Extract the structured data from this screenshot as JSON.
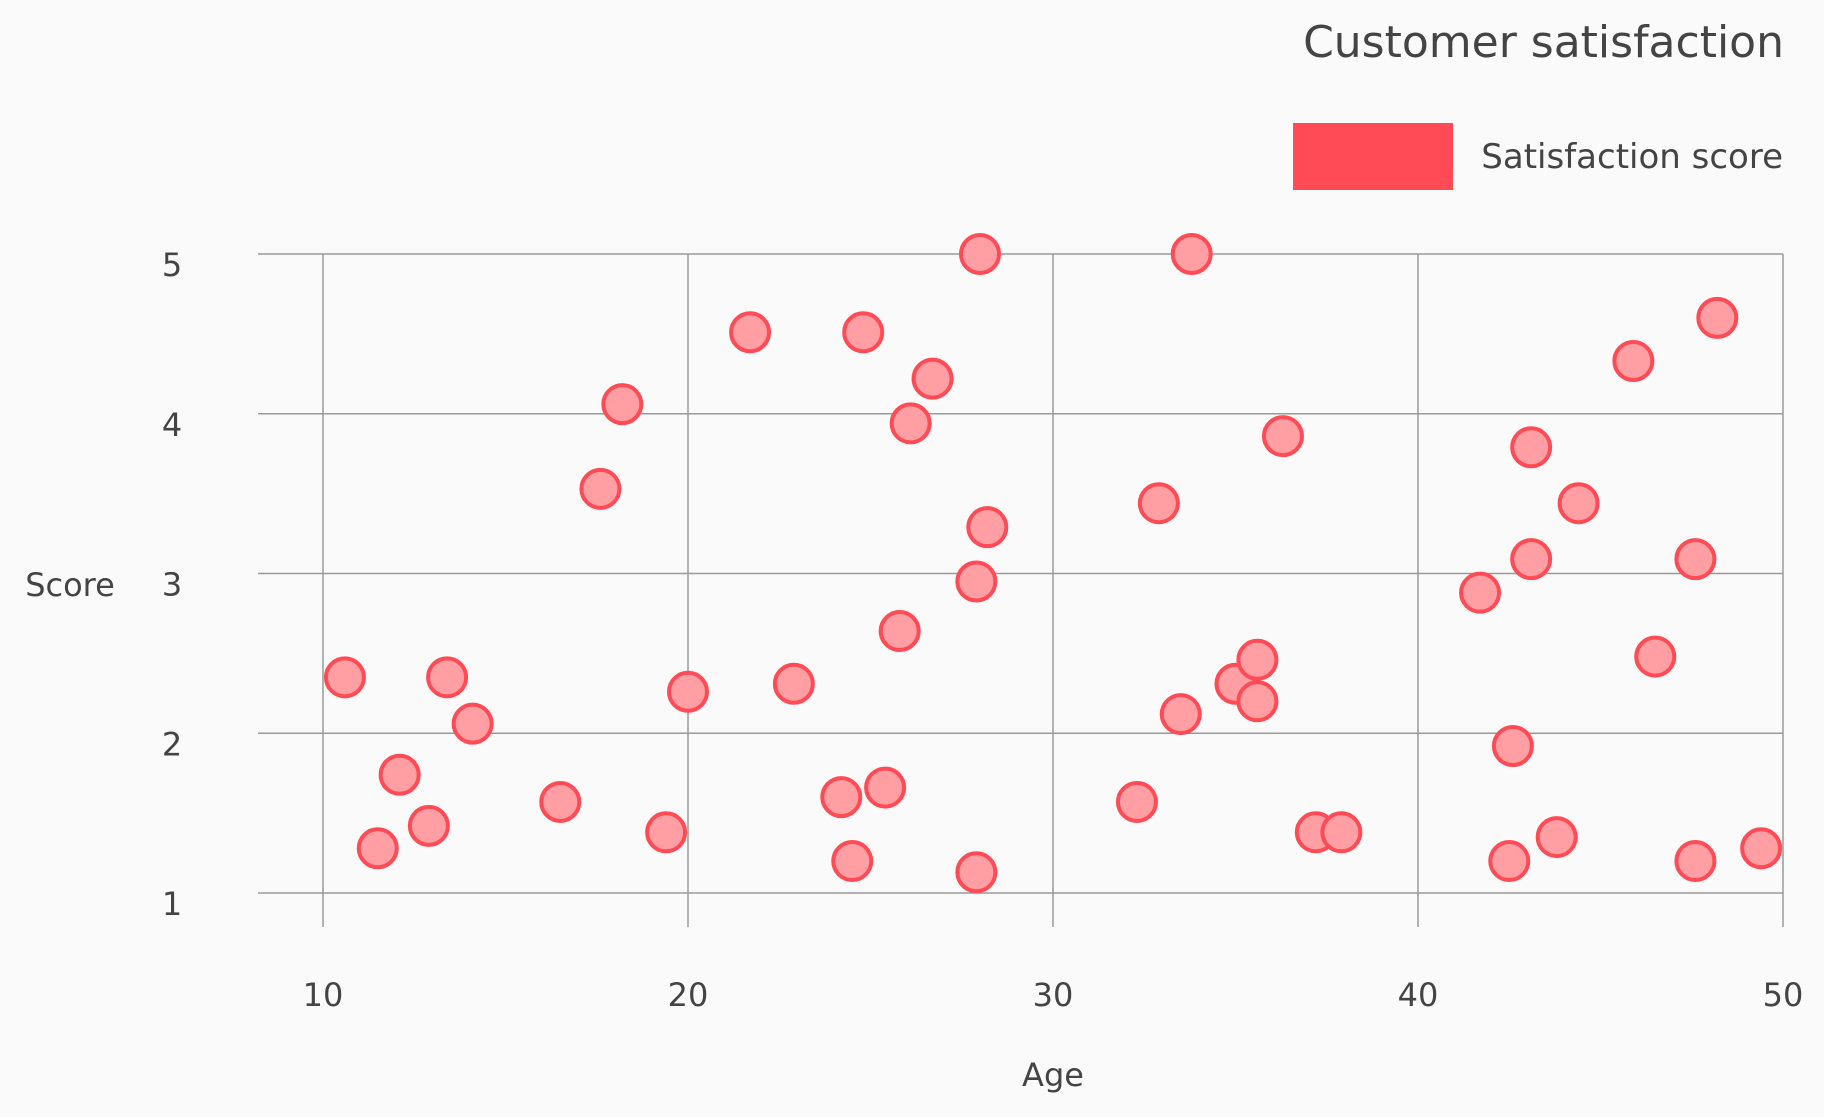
{
  "chart_data": {
    "type": "scatter",
    "title": "Customer satisfaction",
    "xlabel": "Age",
    "ylabel": "Score",
    "xlim": [
      10,
      50
    ],
    "ylim": [
      1,
      5
    ],
    "xticks": [
      "10",
      "20",
      "30",
      "40",
      "50"
    ],
    "yticks": [
      "1",
      "2",
      "3",
      "4",
      "5"
    ],
    "grid": true,
    "legend_position": "top-right",
    "colors": {
      "fill": "#ff9ea3",
      "stroke": "#ff4b55",
      "legend": "#ff4b55"
    },
    "series": [
      {
        "name": "Satisfaction score",
        "points": [
          [
            10.6,
            2.35
          ],
          [
            11.5,
            1.28
          ],
          [
            12.1,
            1.74
          ],
          [
            12.9,
            1.42
          ],
          [
            13.4,
            2.35
          ],
          [
            14.1,
            2.06
          ],
          [
            16.5,
            1.57
          ],
          [
            17.6,
            3.53
          ],
          [
            18.2,
            4.06
          ],
          [
            19.4,
            1.38
          ],
          [
            20.0,
            2.26
          ],
          [
            21.7,
            4.51
          ],
          [
            22.9,
            2.31
          ],
          [
            24.2,
            1.6
          ],
          [
            24.5,
            1.2
          ],
          [
            24.8,
            4.51
          ],
          [
            25.4,
            1.66
          ],
          [
            25.8,
            2.64
          ],
          [
            26.1,
            3.94
          ],
          [
            26.7,
            4.22
          ],
          [
            27.9,
            2.95
          ],
          [
            27.9,
            1.13
          ],
          [
            28.0,
            5.0
          ],
          [
            28.2,
            3.29
          ],
          [
            32.3,
            1.57
          ],
          [
            32.9,
            3.44
          ],
          [
            33.5,
            2.12
          ],
          [
            33.8,
            5.0
          ],
          [
            35.0,
            2.31
          ],
          [
            35.6,
            2.46
          ],
          [
            35.6,
            2.2
          ],
          [
            36.3,
            3.86
          ],
          [
            37.2,
            1.38
          ],
          [
            37.9,
            1.38
          ],
          [
            41.7,
            2.88
          ],
          [
            42.5,
            1.2
          ],
          [
            42.6,
            1.92
          ],
          [
            43.1,
            3.79
          ],
          [
            43.1,
            3.09
          ],
          [
            43.8,
            1.35
          ],
          [
            44.4,
            3.44
          ],
          [
            45.9,
            4.33
          ],
          [
            46.5,
            2.48
          ],
          [
            47.6,
            3.09
          ],
          [
            47.6,
            1.2
          ],
          [
            48.2,
            4.6
          ],
          [
            49.4,
            1.28
          ]
        ]
      }
    ]
  }
}
